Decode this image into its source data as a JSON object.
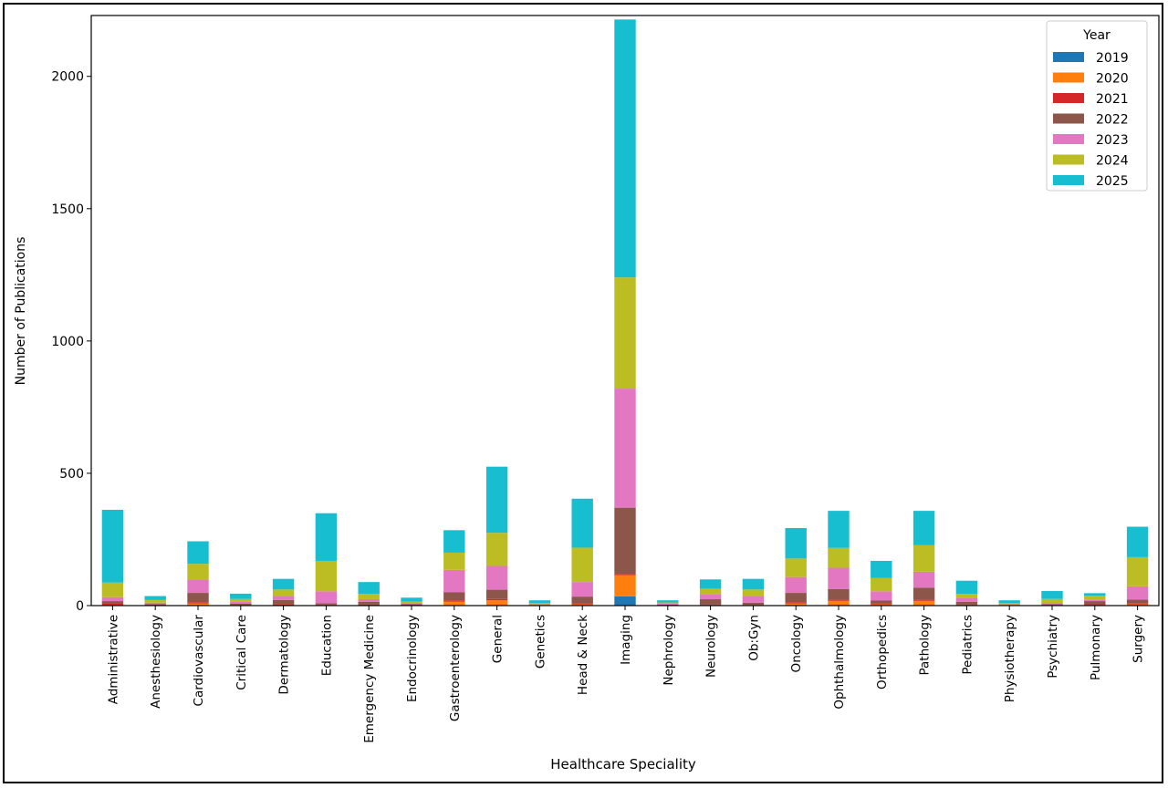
{
  "chart_data": {
    "type": "bar",
    "stacked": true,
    "title": "",
    "xlabel": "Healthcare Speciality",
    "ylabel": "Number of Publications",
    "ylim": [
      0,
      2230
    ],
    "yticks": [
      0,
      500,
      1000,
      1500,
      2000
    ],
    "grid": false,
    "legend": {
      "title": "Year",
      "placement": "top-right"
    },
    "categories": [
      "Administrative",
      "Anesthesiology",
      "Cardiovascular",
      "Critical Care",
      "Dermatology",
      "Education",
      "Emergency Medicine",
      "Endocrinology",
      "Gastroenterology",
      "General",
      "Genetics",
      "Head & Neck",
      "Imaging",
      "Nephrology",
      "Neurology",
      "Ob:Gyn",
      "Oncology",
      "Ophthalmology",
      "Orthopedics",
      "Pathology",
      "Pediatrics",
      "Physiotherapy",
      "Psychiatry",
      "Pulmonary",
      "Surgery"
    ],
    "series": [
      {
        "name": "2019",
        "color": "#1f77b4",
        "values": [
          0,
          0,
          0,
          0,
          0,
          0,
          0,
          0,
          0,
          0,
          0,
          0,
          35,
          0,
          0,
          0,
          0,
          0,
          0,
          0,
          0,
          0,
          0,
          0,
          0
        ]
      },
      {
        "name": "2020",
        "color": "#ff7f0e",
        "values": [
          2,
          0,
          8,
          0,
          1,
          2,
          1,
          0,
          15,
          20,
          0,
          5,
          80,
          0,
          2,
          2,
          8,
          18,
          5,
          18,
          2,
          0,
          1,
          2,
          5
        ]
      },
      {
        "name": "2021",
        "color": "#d62728",
        "values": [
          5,
          1,
          5,
          2,
          5,
          2,
          3,
          1,
          5,
          5,
          0,
          4,
          5,
          1,
          2,
          1,
          5,
          5,
          4,
          5,
          2,
          0,
          1,
          3,
          3
        ]
      },
      {
        "name": "2022",
        "color": "#8c564b",
        "values": [
          10,
          5,
          35,
          5,
          15,
          5,
          10,
          4,
          30,
          35,
          2,
          25,
          250,
          3,
          20,
          8,
          35,
          40,
          10,
          45,
          10,
          2,
          3,
          12,
          15
        ]
      },
      {
        "name": "2023",
        "color": "#e377c2",
        "values": [
          15,
          5,
          50,
          8,
          15,
          45,
          10,
          5,
          85,
          90,
          3,
          55,
          450,
          3,
          20,
          25,
          60,
          80,
          35,
          60,
          15,
          3,
          5,
          5,
          50
        ]
      },
      {
        "name": "2024",
        "color": "#bcbd22",
        "values": [
          55,
          10,
          60,
          10,
          25,
          115,
          20,
          5,
          65,
          125,
          5,
          130,
          420,
          5,
          20,
          25,
          70,
          75,
          50,
          100,
          15,
          5,
          15,
          15,
          110
        ]
      },
      {
        "name": "2025",
        "color": "#17becf",
        "values": [
          275,
          15,
          85,
          20,
          40,
          180,
          45,
          15,
          85,
          250,
          10,
          185,
          975,
          8,
          35,
          40,
          115,
          140,
          65,
          130,
          50,
          10,
          30,
          10,
          115
        ]
      }
    ]
  }
}
